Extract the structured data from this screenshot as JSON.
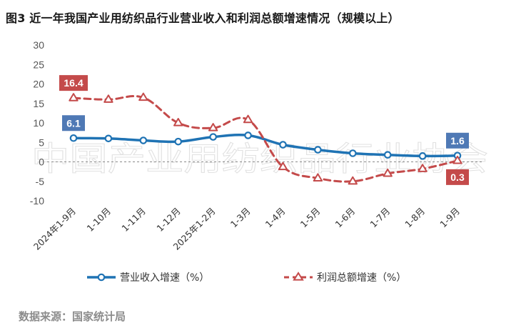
{
  "title": "图3 近一年我国产业用纺织品行业营业收入和利润总额增速情况（规模以上）",
  "source": "数据来源：国家统计局",
  "watermark": "中国产业用纺织品行业协会",
  "colors": {
    "revenue": "#1f73b4",
    "profit": "#c44a4a",
    "revenue_label_bg": "#4f79b5",
    "profit_label_bg": "#c44a4a",
    "zero_line": "#8a8a8a"
  },
  "chart_data": {
    "type": "line",
    "categories": [
      "2024年1-9月",
      "1-10月",
      "1-11月",
      "1-12月",
      "2025年1-2月",
      "1-3月",
      "1-4月",
      "1-5月",
      "1-6月",
      "1-7月",
      "1-8月",
      "1-9月"
    ],
    "series": [
      {
        "name": "营业收入增速（%）",
        "values": [
          6.1,
          6.0,
          5.5,
          5.2,
          6.4,
          6.8,
          4.4,
          3.1,
          2.2,
          1.8,
          1.5,
          1.6
        ],
        "style": "solid",
        "marker": "circle"
      },
      {
        "name": "利润总额增速（%）",
        "values": [
          16.4,
          16.0,
          16.5,
          10.0,
          8.7,
          10.8,
          -1.3,
          -4.2,
          -5.0,
          -3.0,
          -1.8,
          0.3
        ],
        "style": "dashed",
        "marker": "triangle"
      }
    ],
    "data_labels": [
      {
        "series": 1,
        "index": 0,
        "text": "16.4"
      },
      {
        "series": 0,
        "index": 0,
        "text": "6.1"
      },
      {
        "series": 0,
        "index": 11,
        "text": "1.6"
      },
      {
        "series": 1,
        "index": 11,
        "text": "0.3"
      }
    ],
    "yticks": [
      "30",
      "25",
      "20",
      "15",
      "10",
      "5",
      "0",
      "-5",
      "-10"
    ],
    "ylim": [
      -10,
      30
    ],
    "legend_position": "bottom",
    "grid": false
  }
}
